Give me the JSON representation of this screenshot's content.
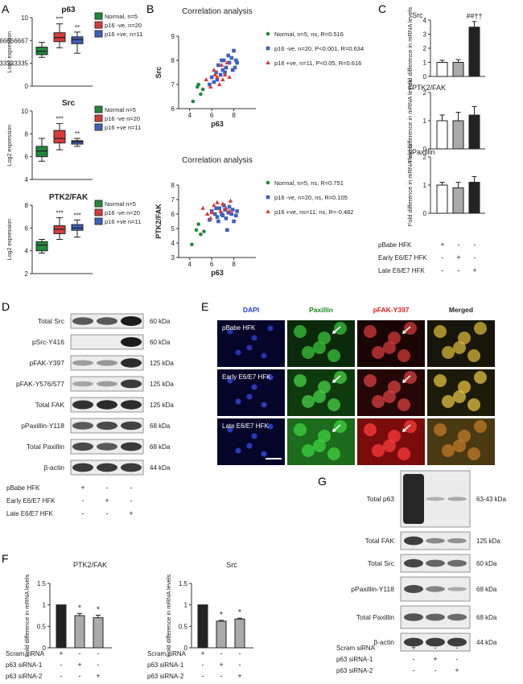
{
  "panels": {
    "A": {
      "label": "A",
      "ylabel": "Log2 expression",
      "sigs": [
        "***",
        "**"
      ],
      "sigs_ptk": [
        "***",
        "***"
      ],
      "charts": [
        {
          "title": "p63",
          "legend": [
            "Normal, n=5",
            "p16 -ve, n=20",
            "p16 +ve, n=11"
          ]
        },
        {
          "title": "Src",
          "legend": [
            "Normal   n=5",
            "p16 -ve  n=20",
            "p16 +ve  n=11"
          ]
        },
        {
          "title": "PTK2/FAK",
          "legend": [
            "Normal   n=5",
            "p16 -ve  n=20",
            "p16 +ve  n=11"
          ]
        }
      ]
    },
    "B": {
      "label": "B",
      "xlabel": "p63",
      "charts": [
        {
          "title": "Correlation analysis",
          "ylabel": "Src",
          "legend": [
            "Normal, n=5, ns, R=0.516",
            "p16 -ve, n=20, P<0.001, R=0.634",
            "p16 +ve, n=11, P<0.05, R=0.616"
          ]
        },
        {
          "title": "Correlation analysis",
          "ylabel": "PTK2/FAK",
          "legend": [
            "Normal, n=5, ns, R=0.751",
            "p16 -ve, n=20, ns, R=0.105",
            "p16 +ve, ns=11, ns, R=-0.482"
          ]
        }
      ]
    },
    "C": {
      "label": "C",
      "ylabel": "Fold difference in mRNA levels",
      "titles": [
        "Src",
        "PTK2/FAK",
        "Paxillin"
      ],
      "sig": "##††",
      "rows": [
        "pBabe HFK",
        "Early E6/E7 HFK",
        "Late E6/E7 HFK"
      ]
    },
    "D": {
      "label": "D",
      "bands": [
        "Total Src",
        "pSrc-Y416",
        "pFAK-Y397",
        "pFAK-Y576/577",
        "Total FAK",
        "pPaxillin-Y118",
        "Total Paxillin",
        "β-actin"
      ],
      "sizes": [
        "60 kDa",
        "60 kDa",
        "125 kDa",
        "125 kDa",
        "125 kDa",
        "68 kDa",
        "68 kDa",
        "44 kDa"
      ],
      "rows": [
        "pBabe HFK",
        "Early E6/E7 HFK",
        "Late E6/E7 HFK"
      ]
    },
    "E": {
      "label": "E",
      "columns": [
        "DAPI",
        "Paxillin",
        "pFAK-Y397",
        "Merged"
      ],
      "rows": [
        "pBabe HFK",
        "Early E6/E7 HFK",
        "Late E6/E7 HFK"
      ]
    },
    "F": {
      "label": "F",
      "ylabel": "Fold difference in mRNA levels",
      "titles": [
        "PTK2/FAK",
        "Src"
      ],
      "rows": [
        "Scram siRNA",
        "p63 siRNA-1",
        "p63 siRNA-2"
      ],
      "sig": "*"
    },
    "G": {
      "label": "G",
      "bands": [
        "Total p63",
        "Total FAK",
        "Total Src",
        "pPaxillin-Y118",
        "Total Paxillin",
        "β-actin"
      ],
      "sizes": [
        "63-43 kDa",
        "125 kDa",
        "60 kDa",
        "68 kDa",
        "68 kDa",
        "44 kDa"
      ],
      "rows": [
        "Scram siRNA",
        "p63 siRNA-1",
        "p63 siRNA-2"
      ]
    }
  },
  "colors": {
    "normal": "#1f8a3a",
    "p16neg": "#d93a3a",
    "p16pos": "#3f5fbf",
    "grey": "#aaaaaa",
    "dark": "#222222"
  },
  "chart_data": [
    {
      "type": "box",
      "panel": "A",
      "title": "p63",
      "ylabel": "Log2 expression",
      "ylim": [
        0,
        10
      ],
      "series": [
        {
          "name": "Normal, n=5",
          "q": [
            4.2,
            4.6,
            5.1,
            5.7,
            6.4
          ]
        },
        {
          "name": "p16 -ve, n=20",
          "q": [
            5.6,
            6.5,
            7.1,
            7.8,
            9.1
          ]
        },
        {
          "name": "p16 +ve, n=11",
          "q": [
            4.8,
            6.2,
            6.8,
            7.2,
            7.9
          ]
        }
      ]
    },
    {
      "type": "box",
      "panel": "A",
      "title": "Src",
      "ylabel": "Log2 expression",
      "ylim": [
        4,
        10
      ],
      "series": [
        {
          "name": "Normal n=5",
          "q": [
            5.6,
            6.0,
            6.5,
            6.9,
            7.6
          ]
        },
        {
          "name": "p16 -ve n=20",
          "q": [
            6.6,
            7.2,
            7.6,
            8.3,
            8.9
          ]
        },
        {
          "name": "p16 +ve n=11",
          "q": [
            6.9,
            7.1,
            7.3,
            7.4,
            7.6
          ]
        }
      ]
    },
    {
      "type": "box",
      "panel": "A",
      "title": "PTK2/FAK",
      "ylabel": "Log2 expression",
      "ylim": [
        2,
        8
      ],
      "series": [
        {
          "name": "Normal n=5",
          "q": [
            3.8,
            4.0,
            4.5,
            4.8,
            5.0
          ]
        },
        {
          "name": "p16 -ve n=20",
          "q": [
            5.0,
            5.5,
            5.9,
            6.2,
            6.9
          ]
        },
        {
          "name": "p16 +ve n=11",
          "q": [
            5.2,
            5.8,
            6.0,
            6.3,
            6.7
          ]
        }
      ]
    },
    {
      "type": "scatter",
      "panel": "B",
      "title": "Correlation analysis",
      "xlabel": "p63",
      "ylabel": "Src",
      "xlim": [
        3,
        10
      ],
      "ylim": [
        6,
        9
      ],
      "series": [
        {
          "name": "Normal, n=5, ns, R=0.516",
          "points": [
            [
              4.3,
              6.3
            ],
            [
              4.7,
              6.9
            ],
            [
              5.0,
              6.6
            ],
            [
              5.2,
              6.8
            ],
            [
              4.8,
              7.0
            ]
          ]
        },
        {
          "name": "p16 -ve, n=20, P<0.001, R=0.634",
          "points": [
            [
              5.8,
              7.0
            ],
            [
              6.0,
              7.3
            ],
            [
              6.2,
              7.1
            ],
            [
              6.4,
              7.5
            ],
            [
              6.6,
              7.8
            ],
            [
              6.8,
              7.4
            ],
            [
              7.0,
              7.6
            ],
            [
              7.1,
              8.0
            ],
            [
              7.3,
              7.7
            ],
            [
              7.5,
              8.2
            ],
            [
              7.6,
              7.9
            ],
            [
              7.8,
              8.1
            ],
            [
              8.0,
              8.4
            ],
            [
              8.1,
              7.7
            ],
            [
              8.2,
              8.0
            ],
            [
              6.5,
              7.2
            ],
            [
              7.2,
              7.5
            ],
            [
              7.9,
              7.6
            ],
            [
              6.9,
              8.0
            ],
            [
              8.3,
              7.9
            ]
          ]
        },
        {
          "name": "p16 +ve, n=11, P<0.05, R=0.616",
          "points": [
            [
              5.5,
              7.2
            ],
            [
              5.9,
              6.9
            ],
            [
              6.2,
              7.6
            ],
            [
              6.5,
              7.3
            ],
            [
              6.7,
              7.0
            ],
            [
              6.9,
              7.8
            ],
            [
              7.2,
              7.4
            ],
            [
              7.4,
              7.9
            ],
            [
              7.6,
              7.3
            ],
            [
              6.3,
              7.4
            ],
            [
              7.0,
              7.2
            ]
          ]
        }
      ]
    },
    {
      "type": "scatter",
      "panel": "B",
      "title": "Correlation analysis",
      "xlabel": "p63",
      "ylabel": "PTK2/FAK",
      "xlim": [
        3,
        10
      ],
      "ylim": [
        3,
        8
      ],
      "series": [
        {
          "name": "Normal, n=5, ns, R=0.751",
          "points": [
            [
              4.2,
              3.9
            ],
            [
              4.6,
              4.9
            ],
            [
              5.0,
              4.6
            ],
            [
              5.3,
              4.8
            ],
            [
              4.8,
              5.3
            ]
          ]
        },
        {
          "name": "p16 -ve, n=20, ns, R=0.105",
          "points": [
            [
              5.8,
              5.6
            ],
            [
              6.0,
              6.2
            ],
            [
              6.3,
              6.0
            ],
            [
              6.5,
              5.8
            ],
            [
              6.7,
              6.4
            ],
            [
              6.9,
              6.0
            ],
            [
              7.0,
              5.9
            ],
            [
              7.2,
              6.3
            ],
            [
              7.3,
              5.7
            ],
            [
              7.5,
              6.1
            ],
            [
              7.6,
              6.5
            ],
            [
              7.8,
              6.0
            ],
            [
              8.0,
              5.5
            ],
            [
              8.2,
              5.9
            ],
            [
              7.4,
              4.9
            ],
            [
              6.6,
              5.5
            ],
            [
              7.9,
              6.3
            ],
            [
              8.3,
              6.2
            ],
            [
              7.1,
              6.6
            ],
            [
              6.4,
              6.4
            ]
          ]
        },
        {
          "name": "p16 +ve, ns=11, ns, R=-0.482",
          "points": [
            [
              5.2,
              6.4
            ],
            [
              5.6,
              6.0
            ],
            [
              5.9,
              5.7
            ],
            [
              6.2,
              6.6
            ],
            [
              6.5,
              6.8
            ],
            [
              6.8,
              6.2
            ],
            [
              7.0,
              6.7
            ],
            [
              7.3,
              6.4
            ],
            [
              7.6,
              6.2
            ],
            [
              6.0,
              6.1
            ],
            [
              7.7,
              6.9
            ]
          ]
        }
      ]
    },
    {
      "type": "bar",
      "panel": "C",
      "title": "Src",
      "categories": [
        "pBabe HFK",
        "Early E6/E7 HFK",
        "Late E6/E7 HFK"
      ],
      "values": [
        1.0,
        1.0,
        3.5
      ],
      "errors": [
        0.15,
        0.2,
        0.4
      ],
      "ylim": [
        0,
        4
      ]
    },
    {
      "type": "bar",
      "panel": "C",
      "title": "PTK2/FAK",
      "categories": [
        "pBabe HFK",
        "Early E6/E7 HFK",
        "Late E6/E7 HFK"
      ],
      "values": [
        1.0,
        1.0,
        1.2
      ],
      "errors": [
        0.2,
        0.3,
        0.3
      ],
      "ylim": [
        0,
        2
      ]
    },
    {
      "type": "bar",
      "panel": "C",
      "title": "Paxillin",
      "categories": [
        "pBabe HFK",
        "Early E6/E7 HFK",
        "Late E6/E7 HFK"
      ],
      "values": [
        1.0,
        0.9,
        1.1
      ],
      "errors": [
        0.1,
        0.2,
        0.2
      ],
      "ylim": [
        0,
        2
      ]
    },
    {
      "type": "bar",
      "panel": "F",
      "title": "PTK2/FAK",
      "categories": [
        "Scram siRNA",
        "p63 siRNA-1",
        "p63 siRNA-2"
      ],
      "values": [
        1.0,
        0.75,
        0.7
      ],
      "errors": [
        0.0,
        0.05,
        0.06
      ],
      "ylim": [
        0,
        1.5
      ]
    },
    {
      "type": "bar",
      "panel": "F",
      "title": "Src",
      "categories": [
        "Scram siRNA",
        "p63 siRNA-1",
        "p63 siRNA-2"
      ],
      "values": [
        1.0,
        0.62,
        0.67
      ],
      "errors": [
        0.0,
        0.02,
        0.02
      ],
      "ylim": [
        0,
        1.5
      ]
    }
  ]
}
